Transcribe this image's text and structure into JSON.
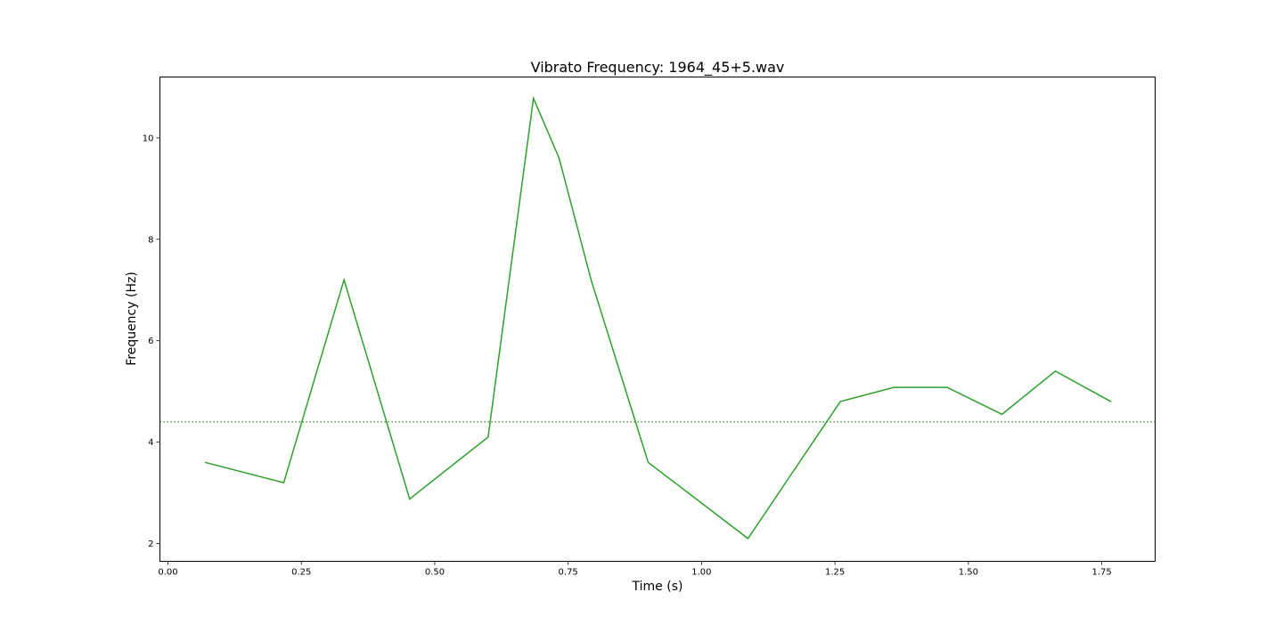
{
  "chart_data": {
    "type": "line",
    "title": "Vibrato Frequency: 1964_45+5.wav",
    "xlabel": "Time (s)",
    "ylabel": "Frequency (Hz)",
    "xlim": [
      -0.015,
      1.85
    ],
    "ylim": [
      1.65,
      11.2
    ],
    "x_ticks": [
      0.0,
      0.25,
      0.5,
      0.75,
      1.0,
      1.25,
      1.5,
      1.75
    ],
    "x_tick_labels": [
      "0.00",
      "0.25",
      "0.50",
      "0.75",
      "1.00",
      "1.25",
      "1.50",
      "1.75"
    ],
    "y_ticks": [
      2,
      4,
      6,
      8,
      10
    ],
    "y_tick_labels": [
      "2",
      "4",
      "6",
      "8",
      "10"
    ],
    "grid": false,
    "series": [
      {
        "line_color": "#2ca02c",
        "line_style": "solid",
        "x": [
          0.07,
          0.217,
          0.33,
          0.453,
          0.6,
          0.685,
          0.733,
          0.793,
          0.9,
          1.087,
          1.26,
          1.36,
          1.46,
          1.563,
          1.663,
          1.767
        ],
        "y": [
          3.6,
          3.2,
          7.2,
          2.88,
          4.1,
          10.78,
          9.6,
          7.2,
          3.6,
          2.1,
          4.8,
          5.08,
          5.08,
          4.55,
          5.4,
          4.8
        ]
      }
    ],
    "reference_line": {
      "y": 4.4,
      "color": "#2ca02c",
      "line_style": "dotted"
    }
  }
}
